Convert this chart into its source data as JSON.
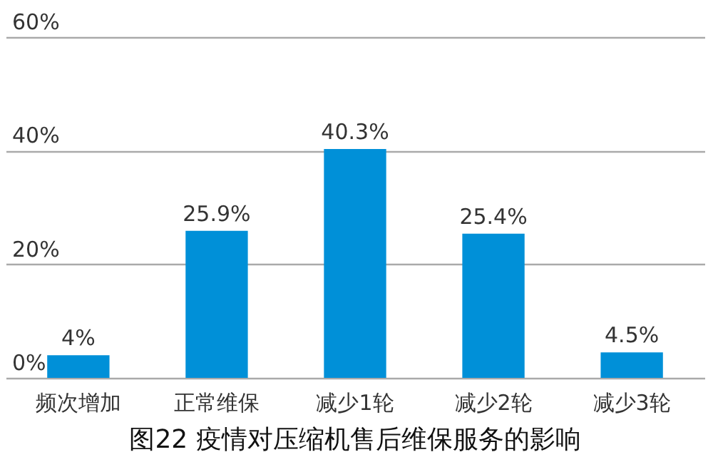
{
  "chart_data": {
    "type": "bar",
    "title": "图22 疫情对压缩机售后维保服务的影响",
    "categories": [
      "频次增加",
      "正常维保",
      "减少1轮",
      "减少2轮",
      "减少3轮"
    ],
    "values": [
      4,
      25.9,
      40.3,
      25.4,
      4.5
    ],
    "value_labels": [
      "4%",
      "25.9%",
      "40.3%",
      "25.4%",
      "4.5%"
    ],
    "color": "#0090d8",
    "ylim": [
      0,
      60
    ],
    "yticks": [
      {
        "value": 0,
        "label": "0%"
      },
      {
        "value": 20,
        "label": "20%"
      },
      {
        "value": 40,
        "label": "40%"
      },
      {
        "value": 60,
        "label": "60%"
      }
    ],
    "grid": "y"
  }
}
